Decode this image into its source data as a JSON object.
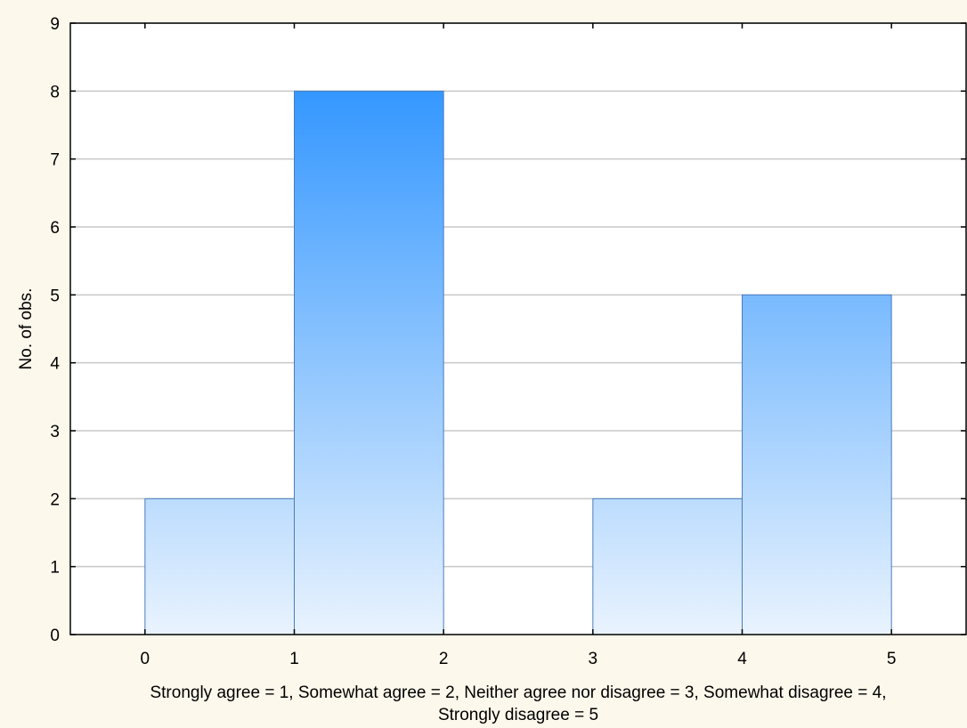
{
  "chart_data": {
    "type": "bar",
    "bins": [
      {
        "x0": 0,
        "x1": 1,
        "value": 2
      },
      {
        "x0": 1,
        "x1": 2,
        "value": 8
      },
      {
        "x0": 2,
        "x1": 3,
        "value": 0
      },
      {
        "x0": 3,
        "x1": 4,
        "value": 2
      },
      {
        "x0": 4,
        "x1": 5,
        "value": 5
      }
    ],
    "xlabel_lines": [
      "Strongly agree = 1, Somewhat agree = 2, Neither agree nor disagree = 3, Somewhat disagree = 4,",
      "Strongly disagree = 5"
    ],
    "ylabel": "No. of obs.",
    "xticks": [
      "0",
      "1",
      "2",
      "3",
      "4",
      "5"
    ],
    "yticks": [
      "0",
      "1",
      "2",
      "3",
      "4",
      "5",
      "6",
      "7",
      "8",
      "9"
    ],
    "xlim": [
      -0.5,
      5.5
    ],
    "ylim": [
      0,
      9
    ],
    "grid": "horizontal",
    "colors": {
      "background": "#fdf8ec",
      "plot_area": "#ffffff",
      "bar_top": "#1e8cff",
      "bar_bottom": "#e9f3fe",
      "bar_stroke": "#4a7cc0",
      "grid": "#c8c8c8",
      "axis": "#000000"
    }
  }
}
